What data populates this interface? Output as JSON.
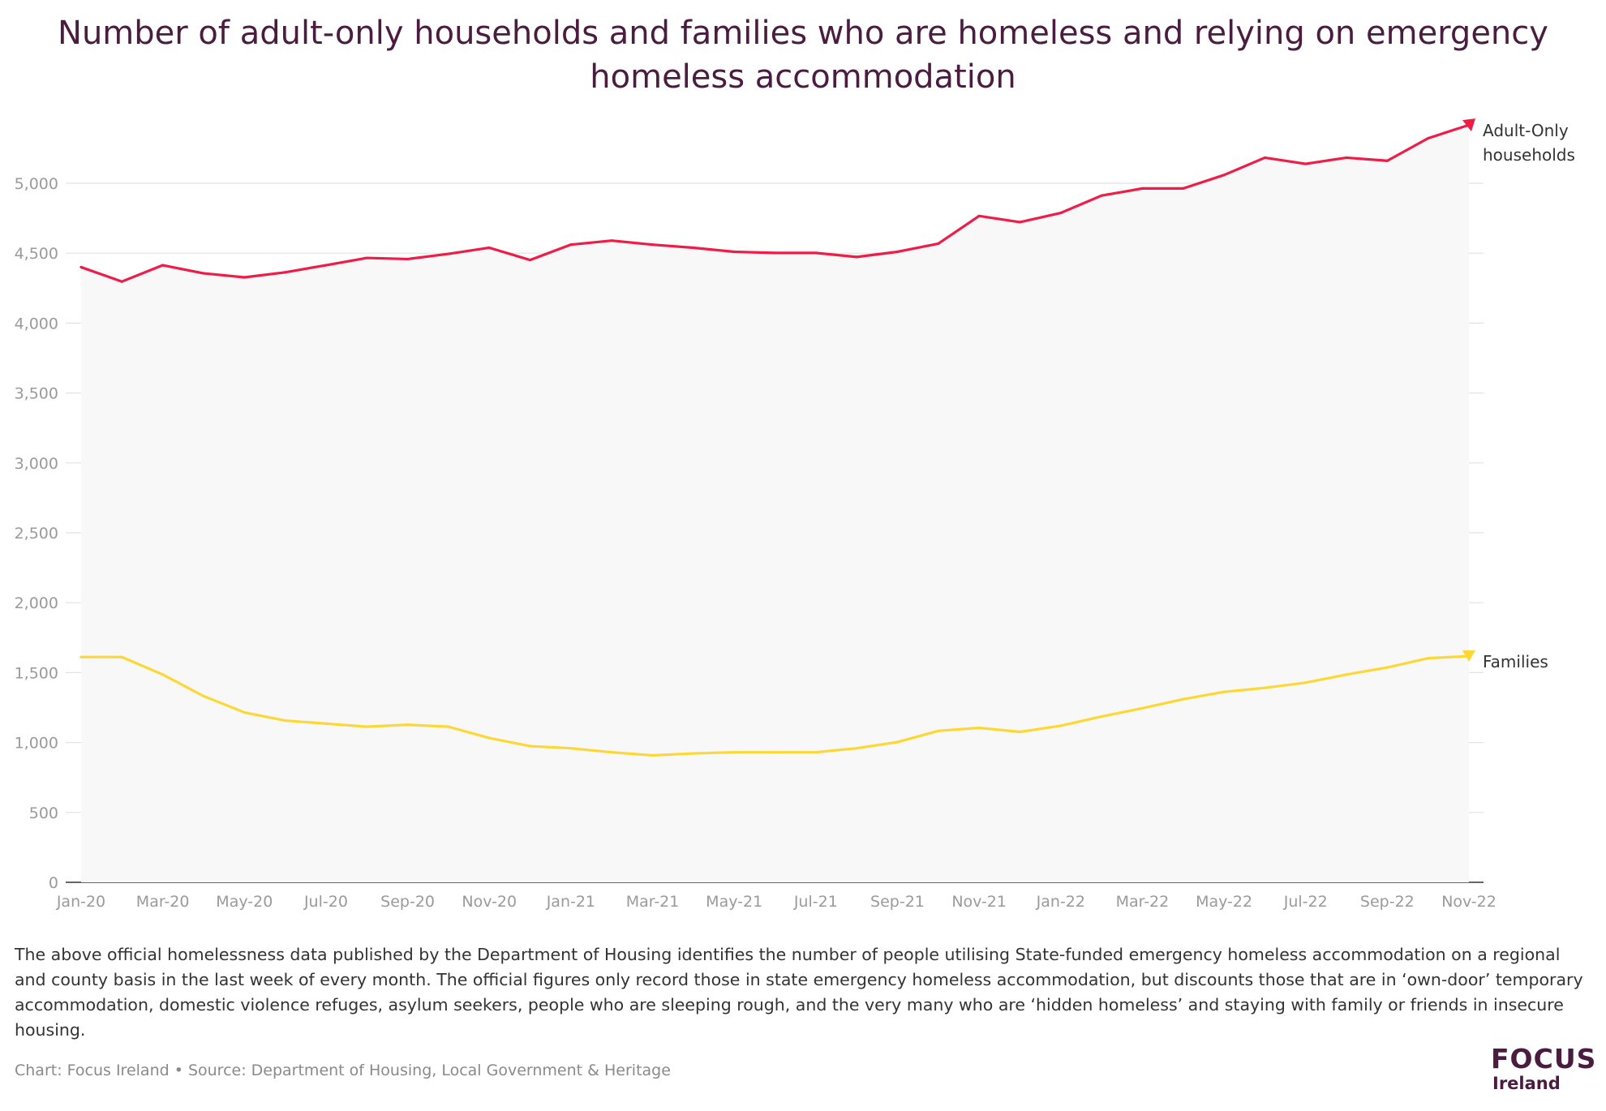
{
  "chart_data": {
    "type": "line",
    "title": "Number of adult-only households and families who are homeless and relying on emergency homeless accommodation",
    "xlabel": "",
    "ylabel": "",
    "x": [
      "Jan-20",
      "Feb-20",
      "Mar-20",
      "Apr-20",
      "May-20",
      "Jun-20",
      "Jul-20",
      "Aug-20",
      "Sep-20",
      "Oct-20",
      "Nov-20",
      "Dec-20",
      "Jan-21",
      "Feb-21",
      "Mar-21",
      "Apr-21",
      "May-21",
      "Jun-21",
      "Jul-21",
      "Aug-21",
      "Sep-21",
      "Oct-21",
      "Nov-21",
      "Dec-21",
      "Jan-22",
      "Feb-22",
      "Mar-22",
      "Apr-22",
      "May-22",
      "Jun-22",
      "Jul-22",
      "Aug-22",
      "Sep-22",
      "Oct-22",
      "Nov-22"
    ],
    "x_tick_labels": [
      "Jan-20",
      "Mar-20",
      "May-20",
      "Jul-20",
      "Sep-20",
      "Nov-20",
      "Jan-21",
      "Mar-21",
      "May-21",
      "Jul-21",
      "Sep-21",
      "Nov-21",
      "Jan-22",
      "Mar-22",
      "May-22",
      "Jul-22",
      "Sep-22",
      "Nov-22"
    ],
    "y_ticks": [
      0,
      500,
      1000,
      1500,
      2000,
      2500,
      3000,
      3500,
      4000,
      4500,
      5000
    ],
    "y_tick_labels": [
      "0",
      "500",
      "1,000",
      "1,500",
      "2,000",
      "2,500",
      "3,000",
      "3,500",
      "4,000",
      "4,500",
      "5,000"
    ],
    "ylim": [
      0,
      5500
    ],
    "grid": "horizontal",
    "legend": "direct labels at line ends (right)",
    "area_fill": "#f8f8f8",
    "series": [
      {
        "name": "Adult-Only households",
        "color": "#ee1c47",
        "values": [
          4400,
          4297,
          4414,
          4356,
          4327,
          4363,
          4414,
          4466,
          4458,
          4495,
          4539,
          4451,
          4561,
          4590,
          4561,
          4539,
          4510,
          4502,
          4502,
          4473,
          4510,
          4568,
          4766,
          4722,
          4788,
          4912,
          4963,
          4963,
          5059,
          5183,
          5139,
          5183,
          5161,
          5322,
          5417
        ]
      },
      {
        "name": "Families",
        "color": "#fdd835",
        "values": [
          1611,
          1611,
          1486,
          1332,
          1215,
          1157,
          1135,
          1113,
          1127,
          1113,
          1032,
          974,
          959,
          930,
          908,
          922,
          930,
          930,
          930,
          959,
          1003,
          1083,
          1105,
          1076,
          1120,
          1186,
          1245,
          1310,
          1362,
          1391,
          1428,
          1486,
          1537,
          1603,
          1618
        ]
      }
    ]
  },
  "labels": {
    "adult_line1": "Adult-Only",
    "adult_line2": "households",
    "families": "Families"
  },
  "note": "The above official homelessness data published by the Department of Housing identifies the number of people utilising State-funded emergency homeless accommodation on a regional and county basis in the last week of every month. The official figures only record those in state emergency homeless accommodation, but discounts those that are in ‘own-door’ temporary accommodation, domestic violence refuges, asylum seekers, people who are sleeping rough, and the very many who are ‘hidden homeless’ and staying with family or friends in insecure housing.",
  "source": "Chart: Focus Ireland • Source: Department of Housing, Local Government & Heritage",
  "logo": {
    "line1": "FOCUS",
    "line2": "Ireland",
    "color": "#4a1d40"
  }
}
